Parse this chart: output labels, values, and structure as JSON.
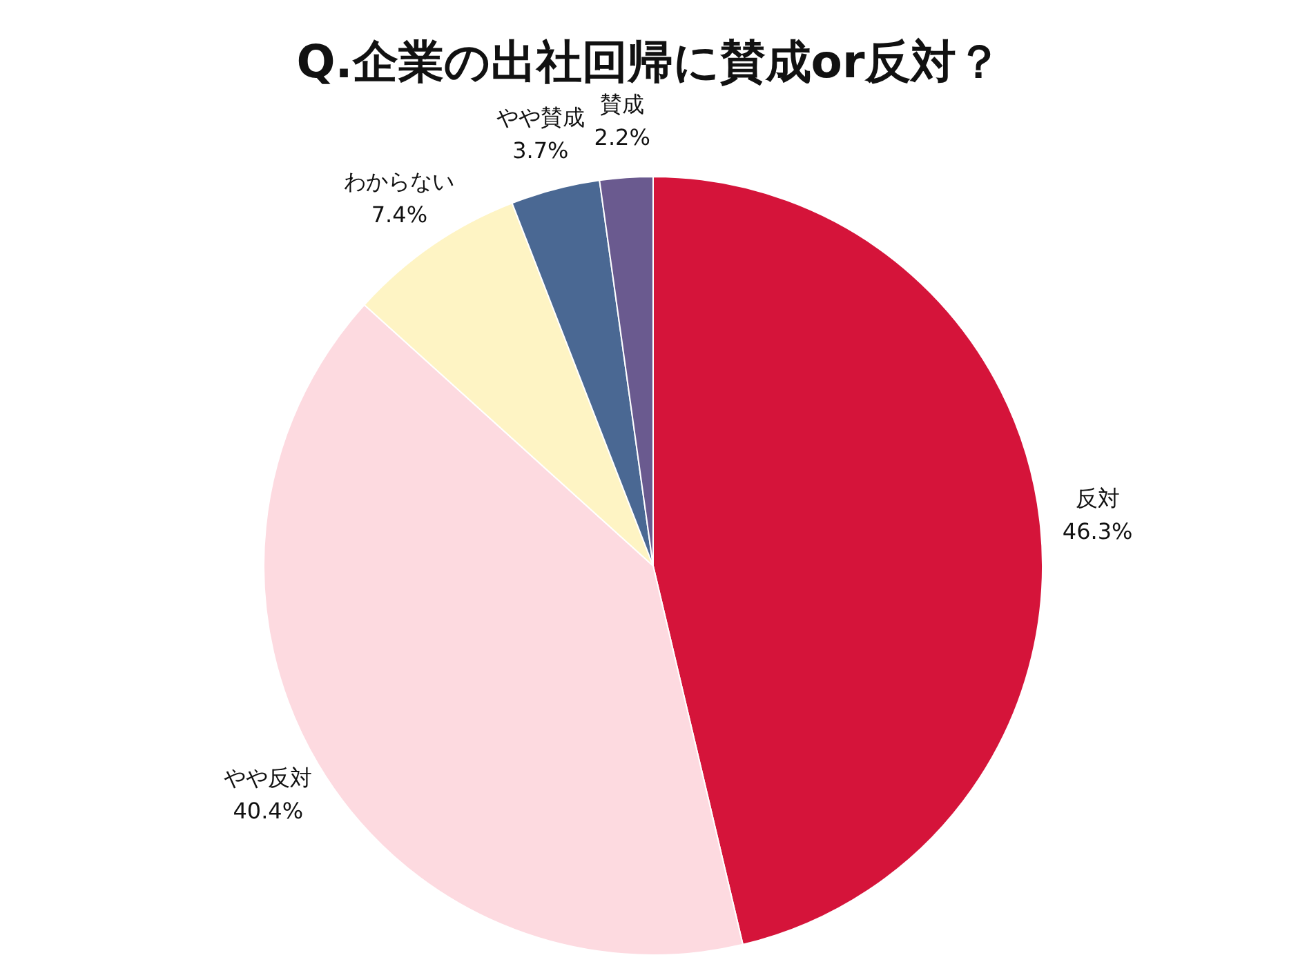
{
  "chart_data": {
    "type": "pie",
    "title": "Q.企業の出社回帰に賛成or反対？",
    "categories": [
      "反対",
      "やや反対",
      "わからない",
      "やや賛成",
      "賛成"
    ],
    "values": [
      46.3,
      40.4,
      7.4,
      3.7,
      2.2
    ],
    "value_labels": [
      "46.3%",
      "40.4%",
      "7.4%",
      "3.7%",
      "2.2%"
    ],
    "colors": [
      "#d5143a",
      "#fddae0",
      "#fef4c4",
      "#4a6893",
      "#6a5a8f"
    ]
  }
}
